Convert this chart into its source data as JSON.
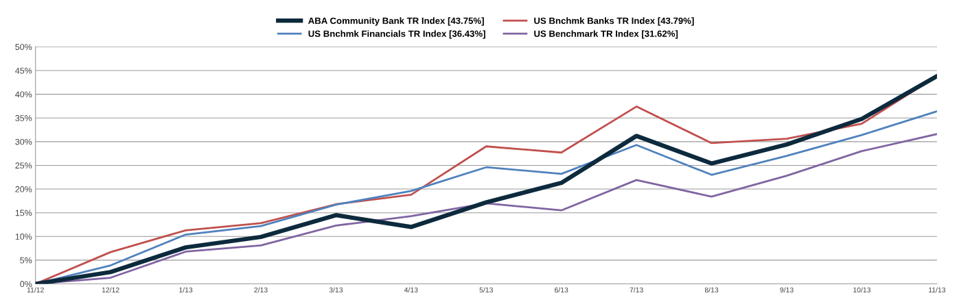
{
  "chart_data": {
    "type": "line",
    "categories": [
      "11/12",
      "12/12",
      "1/13",
      "2/13",
      "3/13",
      "4/13",
      "5/13",
      "6/13",
      "7/13",
      "8/13",
      "9/13",
      "10/13",
      "11/13"
    ],
    "series": [
      {
        "name": "ABA Community Bank TR Index [43.75%]",
        "color": "#0d2a3d",
        "values": [
          0,
          2.5,
          7.7,
          9.9,
          14.5,
          12.0,
          17.2,
          21.3,
          31.2,
          25.4,
          29.4,
          34.8,
          43.8
        ]
      },
      {
        "name": "US Bnchmk Banks TR Index [43.79%]",
        "color": "#c0504d",
        "values": [
          0,
          6.7,
          11.3,
          12.8,
          16.8,
          18.8,
          29.0,
          27.7,
          37.4,
          29.7,
          30.6,
          33.8,
          43.8
        ]
      },
      {
        "name": "US Bnchmk Financials TR Index [36.43%]",
        "color": "#4f81bd",
        "values": [
          0,
          3.9,
          10.4,
          12.2,
          16.7,
          19.6,
          24.6,
          23.2,
          29.3,
          23.0,
          27.0,
          31.4,
          36.4
        ]
      },
      {
        "name": "US Benchmark TR Index [31.62%]",
        "color": "#8064a2",
        "values": [
          0,
          1.3,
          6.8,
          8.1,
          12.3,
          14.3,
          17.0,
          15.5,
          21.9,
          18.4,
          22.8,
          28.0,
          31.6
        ]
      }
    ],
    "ylim": [
      0,
      50
    ],
    "yticks": [
      {
        "value": 0,
        "label": "0%"
      },
      {
        "value": 5,
        "label": "5%"
      },
      {
        "value": 10,
        "label": "10%"
      },
      {
        "value": 15,
        "label": "15%"
      },
      {
        "value": 20,
        "label": "20%"
      },
      {
        "value": 25,
        "label": "25%"
      },
      {
        "value": 30,
        "label": "30%"
      },
      {
        "value": 35,
        "label": "35%"
      },
      {
        "value": 40,
        "label": "40%"
      },
      {
        "value": 45,
        "label": "45%"
      },
      {
        "value": 50,
        "label": "50%"
      }
    ],
    "grid": "y",
    "legend": "top",
    "marker": "none",
    "line_style": "solid"
  }
}
